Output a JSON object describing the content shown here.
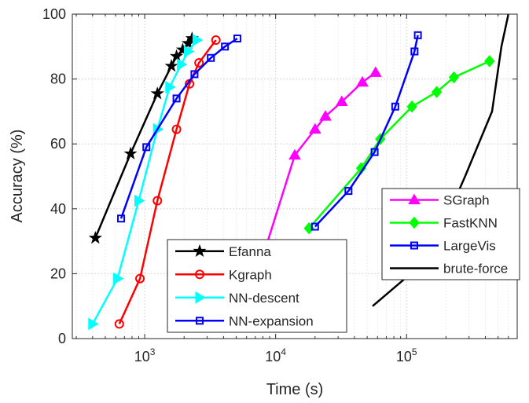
{
  "chart_data": {
    "type": "line",
    "title": "",
    "xlabel": "Time (s)",
    "ylabel": "Accuracy (%)",
    "xscale": "log",
    "xlim": [
      280,
      700000
    ],
    "ylim": [
      0,
      100
    ],
    "grid": true,
    "y_ticks": [
      0,
      20,
      40,
      60,
      80,
      100
    ],
    "x_ticks": [
      {
        "base": "10",
        "exp": "3",
        "value": 1000
      },
      {
        "base": "10",
        "exp": "4",
        "value": 10000
      },
      {
        "base": "10",
        "exp": "5",
        "value": 100000
      }
    ],
    "legends": [
      {
        "placement": "bottom-left",
        "entries": [
          "Efanna",
          "Kgraph",
          "NN-descent",
          "NN-expansion"
        ]
      },
      {
        "placement": "right",
        "entries": [
          "SGraph",
          "FastKNN",
          "LargeVis",
          "brute-force"
        ]
      }
    ],
    "series": [
      {
        "name": "Efanna",
        "color": "#000000",
        "marker": "star",
        "x": [
          420,
          780,
          1250,
          1600,
          1750,
          1950,
          2150,
          2300
        ],
        "y": [
          31,
          57,
          75.5,
          84,
          87,
          89,
          91,
          92.5
        ]
      },
      {
        "name": "Kgraph",
        "color": "#ff0000",
        "marker": "circle",
        "x": [
          640,
          920,
          1250,
          1750,
          2200,
          2600,
          3500
        ],
        "y": [
          4.5,
          18.5,
          42.5,
          64.5,
          78.5,
          85,
          92
        ]
      },
      {
        "name": "NN-descent",
        "color": "#00ffff",
        "marker": "triangle-right",
        "x": [
          400,
          620,
          900,
          1250,
          1550,
          1900,
          2150,
          2500
        ],
        "y": [
          4.5,
          18.5,
          42.5,
          64.5,
          77.5,
          84.5,
          88.5,
          92
        ]
      },
      {
        "name": "NN-expansion",
        "color": "#0000ff",
        "marker": "square",
        "x": [
          660,
          1030,
          1750,
          2400,
          3200,
          4100,
          5100
        ],
        "y": [
          37,
          59,
          74,
          81.5,
          86.5,
          90,
          92.5
        ]
      },
      {
        "name": "SGraph",
        "color": "#ff00ff",
        "marker": "triangle-up",
        "x": [
          8400,
          14000,
          20000,
          24000,
          32000,
          46000,
          58000
        ],
        "y": [
          28,
          56.5,
          64.5,
          68.5,
          73,
          79,
          82
        ]
      },
      {
        "name": "FastKNN",
        "color": "#00ff00",
        "marker": "diamond",
        "x": [
          18000,
          45000,
          63000,
          110000,
          170000,
          230000,
          430000
        ],
        "y": [
          34,
          52.5,
          61.5,
          71.5,
          76,
          80.5,
          85.5
        ]
      },
      {
        "name": "LargeVis",
        "color": "#0000ff",
        "marker": "square",
        "x": [
          20000,
          36000,
          57000,
          82000,
          115000,
          122000
        ],
        "y": [
          34.5,
          45.5,
          57.5,
          71.5,
          88.5,
          93.5
        ]
      },
      {
        "name": "brute-force",
        "color": "#000000",
        "marker": "none",
        "x": [
          55000,
          150000,
          280000,
          450000,
          530000,
          600000
        ],
        "y": [
          10,
          25,
          50,
          70,
          90,
          100
        ]
      }
    ]
  }
}
